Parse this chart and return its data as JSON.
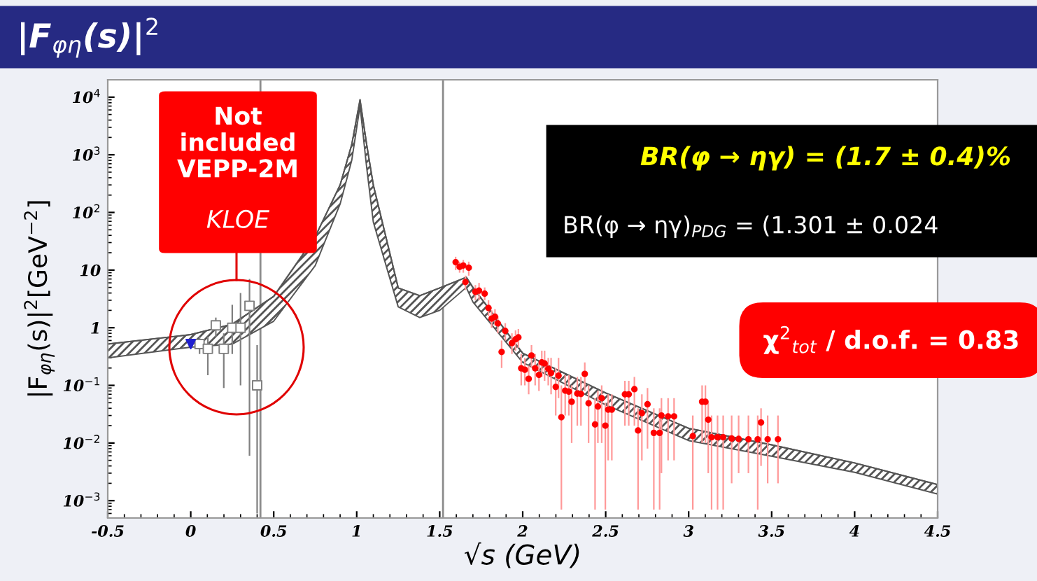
{
  "chart_data": {
    "type": "scatter",
    "title": "|F$_{φη}$(s)|$^{2}$",
    "xlabel": "√s (GeV)",
    "ylabel": "|F$_{φη}$(s)|$^{2}$[GeV$^{−2}$]",
    "annotations": [
      "Not\nincluded\nVEPP-2M",
      "KLOE",
      "BR(φ → ηγ) = (1.7 ± 0.4)%",
      "BR(φ → ηγ)$_{PDG}$ = (1.301 ± 0.024",
      "χ$^{2}$$_{tot}$ / d.o.f. = 0.83"
    ],
    "log": "y",
    "grid": false,
    "legend": false,
    "xlim": [
      -0.5,
      4.5
    ],
    "xticks": [
      -0.5,
      0,
      0.5,
      1,
      1.5,
      2,
      2.5,
      3,
      3.5,
      4,
      4.5
    ],
    "ylim": [
      0.0005,
      20000
    ],
    "yticks": [
      {
        "value": 0.001,
        "label": "10$^{−3}$"
      },
      {
        "value": 0.01,
        "label": "10$^{−2}$"
      },
      {
        "value": 0.1,
        "label": "10$^{−1}$"
      },
      {
        "value": 1,
        "label": "1"
      },
      {
        "value": 10,
        "label": "10"
      },
      {
        "value": 100,
        "label": "10$^{2}$"
      },
      {
        "value": 1000,
        "label": "10$^{3}$"
      },
      {
        "value": 10000,
        "label": "10$^{4}$"
      }
    ],
    "ref_lines": [
      {
        "axis": "x",
        "value": 0.42,
        "color": "#8c8c8c"
      },
      {
        "axis": "x",
        "value": 1.52,
        "color": "#8c8c8c"
      }
    ],
    "series": [
      {
        "type": "line",
        "color": "#555555",
        "x": [
          -0.5,
          0,
          0.25,
          0.5,
          0.75,
          0.9,
          0.97,
          1.02,
          1.06,
          1.1,
          1.25,
          1.38,
          1.5,
          1.66,
          1.7,
          2.0,
          2.5,
          3.0,
          3.5,
          4.0,
          4.5
        ],
        "values": [
          0.52,
          0.76,
          1.15,
          3.5,
          38,
          300,
          1500,
          9000,
          1500,
          300,
          4.9,
          3.6,
          4.9,
          7.5,
          5,
          0.36,
          0.074,
          0.018,
          0.0093,
          0.0045,
          0.0019
        ],
        "upper": [
          0.52,
          0.76,
          1.15,
          3.5,
          38,
          300,
          1500,
          9000,
          1500,
          300,
          4.9,
          3.6,
          4.9,
          7.5,
          5,
          0.36,
          0.074,
          0.018,
          0.0093,
          0.0045,
          0.0019
        ],
        "lower": [
          0.3,
          0.46,
          0.52,
          1.3,
          12,
          140,
          800,
          7000,
          600,
          68,
          2.3,
          1.5,
          2.0,
          5,
          2.8,
          0.25,
          0.046,
          0.011,
          0.0059,
          0.0031,
          0.0013
        ]
      },
      {
        "color": "#808080",
        "marker": "square",
        "x": [
          0.053,
          0.103,
          0.151,
          0.199,
          0.25,
          0.3,
          0.354,
          0.4
        ],
        "values": [
          0.52,
          0.43,
          1.1,
          0.43,
          1.0,
          1.0,
          2.4,
          0.1
        ],
        "errors": [
          [
            0.35,
            0.7
          ],
          [
            0.15,
            0.7
          ],
          [
            0.7,
            1.5
          ],
          [
            0.09,
            0.8
          ],
          [
            0.35,
            2.5
          ],
          [
            0.1,
            4
          ],
          [
            0.006,
            7
          ],
          [
            0.0006,
            0.5
          ]
        ]
      },
      {
        "color": "#1f1fd0",
        "marker": "triangle",
        "x": [
          0
        ],
        "values": [
          0.52
        ]
      },
      {
        "color": "#ff0000",
        "marker": "circle",
        "x": [
          1.596,
          1.62,
          1.642,
          1.655,
          1.675,
          1.715,
          1.737,
          1.771,
          1.794,
          1.813,
          1.833,
          1.85,
          1.873,
          1.895,
          1.935,
          1.957,
          1.974,
          1.991,
          2.013,
          2.036,
          2.053,
          2.075,
          2.098,
          2.115,
          2.132,
          2.154,
          2.171,
          2.199,
          2.216,
          2.233,
          2.256,
          2.278,
          2.295,
          2.329,
          2.351,
          2.374,
          2.397,
          2.436,
          2.453,
          2.476,
          2.498,
          2.515,
          2.537,
          2.616,
          2.639,
          2.673,
          2.695,
          2.718,
          2.752,
          2.79,
          2.825,
          2.836,
          2.876,
          2.912,
          3.025,
          3.081,
          3.101,
          3.118,
          3.138,
          3.174,
          3.208,
          3.259,
          3.301,
          3.36,
          3.416,
          3.436,
          3.476,
          3.538
        ],
        "values": [
          13.7,
          11.4,
          12,
          6.2,
          11,
          4.2,
          4.4,
          3.9,
          2.2,
          1.44,
          1.55,
          1.19,
          0.38,
          0.88,
          0.54,
          0.63,
          0.68,
          0.198,
          0.187,
          0.13,
          0.33,
          0.198,
          0.152,
          0.25,
          0.24,
          0.194,
          0.164,
          0.094,
          0.147,
          0.028,
          0.081,
          0.078,
          0.052,
          0.072,
          0.071,
          0.158,
          0.049,
          0.021,
          0.043,
          0.06,
          0.02,
          0.038,
          0.038,
          0.07,
          0.07,
          0.086,
          0.0165,
          0.033,
          0.047,
          0.015,
          0.015,
          0.03,
          0.029,
          0.029,
          0.0132,
          0.052,
          0.052,
          0.0254,
          0.0126,
          0.0126,
          0.0126,
          0.012,
          0.0118,
          0.0116,
          0.0116,
          0.0227,
          0.0116,
          0.0116
        ],
        "errors": [
          [
            10,
            17
          ],
          [
            9,
            14
          ],
          [
            9,
            15
          ],
          [
            4.5,
            8
          ],
          [
            8,
            14
          ],
          [
            3,
            5.5
          ],
          [
            3,
            6
          ],
          [
            3,
            5
          ],
          [
            1.6,
            3
          ],
          [
            1,
            2
          ],
          [
            1.1,
            2.1
          ],
          [
            0.8,
            1.6
          ],
          [
            0.2,
            0.6
          ],
          [
            0.6,
            1.2
          ],
          [
            0.35,
            0.8
          ],
          [
            0.4,
            0.9
          ],
          [
            0.45,
            0.95
          ],
          [
            0.1,
            0.35
          ],
          [
            0.1,
            0.3
          ],
          [
            0.07,
            0.22
          ],
          [
            0.2,
            0.5
          ],
          [
            0.1,
            0.35
          ],
          [
            0.08,
            0.25
          ],
          [
            0.14,
            0.4
          ],
          [
            0.12,
            0.4
          ],
          [
            0.1,
            0.3
          ],
          [
            0.07,
            0.3
          ],
          [
            0.03,
            0.2
          ],
          [
            0.06,
            0.3
          ],
          [
            0.0007,
            0.1
          ],
          [
            0.03,
            0.15
          ],
          [
            0.03,
            0.15
          ],
          [
            0.01,
            0.1
          ],
          [
            0.02,
            0.14
          ],
          [
            0.02,
            0.14
          ],
          [
            0.08,
            0.25
          ],
          [
            0.01,
            0.1
          ],
          [
            0.0007,
            0.06
          ],
          [
            0.01,
            0.08
          ],
          [
            0.01,
            0.1
          ],
          [
            0.0007,
            0.05
          ],
          [
            0.005,
            0.07
          ],
          [
            0.005,
            0.07
          ],
          [
            0.02,
            0.12
          ],
          [
            0.02,
            0.12
          ],
          [
            0.02,
            0.14
          ],
          [
            0.0007,
            0.04
          ],
          [
            0.005,
            0.07
          ],
          [
            0.008,
            0.09
          ],
          [
            0.0007,
            0.04
          ],
          [
            0.0007,
            0.04
          ],
          [
            0.003,
            0.06
          ],
          [
            0.005,
            0.06
          ],
          [
            0.005,
            0.06
          ],
          [
            0.0007,
            0.03
          ],
          [
            0.01,
            0.1
          ],
          [
            0.01,
            0.1
          ],
          [
            0.003,
            0.05
          ],
          [
            0.0007,
            0.03
          ],
          [
            0.0007,
            0.03
          ],
          [
            0.0007,
            0.03
          ],
          [
            0.002,
            0.03
          ],
          [
            0.003,
            0.03
          ],
          [
            0.003,
            0.03
          ],
          [
            0.0007,
            0.03
          ],
          [
            0.004,
            0.04
          ],
          [
            0.002,
            0.03
          ],
          [
            0.002,
            0.03
          ]
        ]
      }
    ]
  }
}
